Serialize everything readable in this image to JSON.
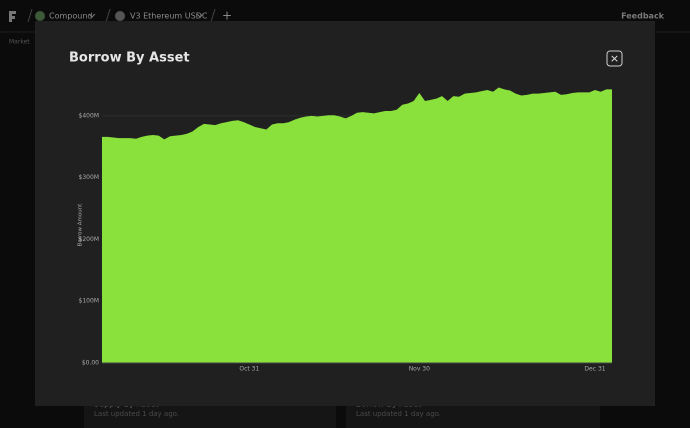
{
  "nav": {
    "project": "Compound",
    "market": "V3 Ethereum USDC",
    "add": "+",
    "feedback": "Feedback",
    "tab": "Market"
  },
  "cards": [
    {
      "title": "Supply By Asset",
      "updated": "Last updated 1 day ago."
    },
    {
      "title": "Borrow By Asset",
      "updated": "Last updated 1 day ago."
    }
  ],
  "modal": {
    "close": "×"
  },
  "chart_data": {
    "type": "area",
    "title": "Borrow By Asset",
    "y_label": "Borrow Amount",
    "color": "#8ae13c",
    "grid": true,
    "categories": [
      null,
      null,
      null,
      null,
      null,
      null,
      null,
      null,
      null,
      null,
      null,
      null,
      null,
      null,
      null,
      null,
      null,
      null,
      null,
      null,
      null,
      null,
      null,
      null,
      null,
      null,
      "Oct 31",
      null,
      null,
      null,
      null,
      null,
      null,
      null,
      null,
      null,
      null,
      null,
      null,
      null,
      null,
      null,
      null,
      null,
      null,
      null,
      null,
      null,
      null,
      null,
      null,
      null,
      null,
      null,
      null,
      null,
      "Nov 30",
      null,
      null,
      null,
      null,
      null,
      null,
      null,
      null,
      null,
      null,
      null,
      null,
      null,
      null,
      null,
      null,
      null,
      null,
      null,
      null,
      null,
      null,
      null,
      null,
      null,
      null,
      null,
      null,
      null,
      null,
      "Dec 31",
      null,
      null,
      null
    ],
    "values": [
      366,
      366,
      365,
      364,
      364,
      364,
      363,
      366,
      368,
      369,
      368,
      362,
      367,
      368,
      369,
      371,
      375,
      382,
      387,
      386,
      385,
      388,
      390,
      392,
      393,
      390,
      386,
      382,
      380,
      378,
      386,
      388,
      388,
      390,
      394,
      397,
      399,
      400,
      399,
      400,
      401,
      401,
      399,
      396,
      400,
      405,
      406,
      405,
      404,
      406,
      408,
      408,
      410,
      418,
      420,
      424,
      437,
      424,
      426,
      428,
      432,
      424,
      432,
      431,
      436,
      437,
      438,
      440,
      442,
      439,
      446,
      443,
      441,
      436,
      433,
      434,
      436,
      436,
      437,
      438,
      439,
      434,
      435,
      437,
      438,
      438,
      438,
      442,
      439,
      443,
      443
    ],
    "ylim": [
      0,
      450
    ],
    "yticks": [
      {
        "value": 0,
        "label": "$0.00"
      },
      {
        "value": 100,
        "label": "$100M"
      },
      {
        "value": 200,
        "label": "$200M"
      },
      {
        "value": 300,
        "label": "$300M"
      },
      {
        "value": 400,
        "label": "$400M"
      }
    ]
  }
}
